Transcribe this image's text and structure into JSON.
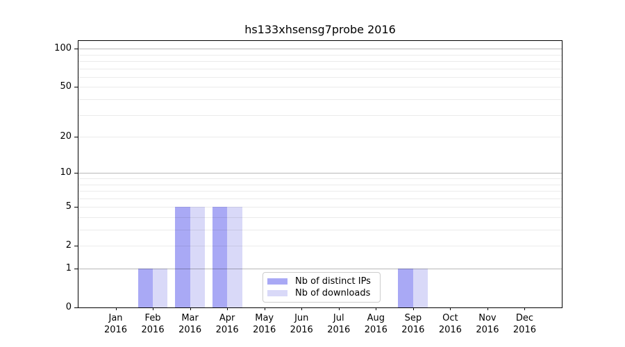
{
  "chart_data": {
    "type": "bar",
    "title": "hs133xhsensg7probe 2016",
    "x_categories": [
      "Jan",
      "Feb",
      "Mar",
      "Apr",
      "May",
      "Jun",
      "Jul",
      "Aug",
      "Sep",
      "Oct",
      "Nov",
      "Dec"
    ],
    "x_year_label": "2016",
    "series": [
      {
        "name": "Nb of distinct IPs",
        "color": "#a9a9f5",
        "values": [
          0,
          1,
          5,
          5,
          0,
          0,
          0,
          0,
          1,
          0,
          0,
          0
        ]
      },
      {
        "name": "Nb of downloads",
        "color": "#d9d9f8",
        "values": [
          0,
          1,
          5,
          5,
          0,
          0,
          0,
          0,
          1,
          0,
          0,
          0
        ]
      }
    ],
    "y_axis": {
      "scale": "log10(value+1)",
      "min": 0,
      "max": 115,
      "tick_values": [
        0,
        1,
        2,
        5,
        10,
        20,
        50,
        100
      ],
      "major_grid_values": [
        1,
        10,
        100
      ],
      "minor_grid_values": [
        2,
        3,
        4,
        5,
        6,
        7,
        8,
        9,
        20,
        30,
        40,
        50,
        60,
        70,
        80,
        90
      ]
    },
    "legend_entries": [
      "Nb of distinct IPs",
      "Nb of downloads"
    ],
    "colors": {
      "background": "#ffffff",
      "spine": "#000000",
      "text": "#000000",
      "major_grid": "rgba(0,0,0,0.28)",
      "minor_grid": "rgba(0,0,0,0.08)"
    }
  }
}
